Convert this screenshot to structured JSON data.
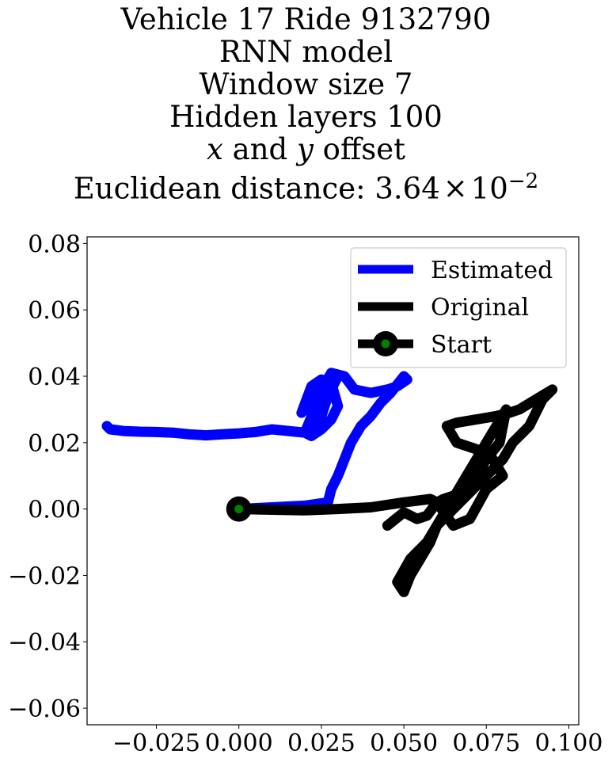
{
  "title_lines": [
    "Vehicle 17 Ride 9132790",
    "RNN model",
    "Window size 7",
    "Hidden layers 100"
  ],
  "title_offset": {
    "x": "x",
    "and": " and ",
    "y": "y",
    "rest": " offset"
  },
  "title_distance": {
    "prefix": "Euclidean distance: 3.64",
    "times": "×",
    "base": "10",
    "exp": "−2"
  },
  "chart_data": {
    "type": "line",
    "xlim": [
      -0.046,
      0.103
    ],
    "ylim": [
      -0.065,
      0.082
    ],
    "xticks": [
      -0.025,
      0.0,
      0.025,
      0.05,
      0.075,
      0.1
    ],
    "xtick_labels": [
      "−0.025",
      "0.000",
      "0.025",
      "0.050",
      "0.075",
      "0.100"
    ],
    "yticks": [
      -0.06,
      -0.04,
      -0.02,
      0.0,
      0.02,
      0.04,
      0.06,
      0.08
    ],
    "ytick_labels": [
      "−0.06",
      "−0.04",
      "−0.02",
      "0.00",
      "0.02",
      "0.04",
      "0.06",
      "0.08"
    ],
    "grid": false,
    "legend_position": "top-right",
    "series": [
      {
        "name": "Estimated",
        "color": "#0000ff",
        "x": [
          0.0,
          0.01,
          0.02,
          0.027,
          0.028,
          0.03,
          0.032,
          0.034,
          0.037,
          0.04,
          0.043,
          0.046,
          0.05,
          0.051,
          0.048,
          0.045,
          0.04,
          0.035,
          0.032,
          0.028,
          0.025,
          0.023,
          0.022,
          0.021,
          0.019,
          0.022,
          0.025,
          0.028,
          0.03,
          0.028,
          0.025,
          0.022,
          0.02,
          0.025,
          0.03,
          0.029,
          0.027,
          0.025,
          0.022,
          0.02,
          0.015,
          0.01,
          0.005,
          0.0,
          -0.005,
          -0.01,
          -0.015,
          -0.02,
          -0.025,
          -0.03,
          -0.035,
          -0.039,
          -0.04
        ],
        "y": [
          0.0,
          0.0005,
          0.001,
          0.002,
          0.006,
          0.01,
          0.015,
          0.02,
          0.025,
          0.028,
          0.032,
          0.035,
          0.04,
          0.039,
          0.037,
          0.036,
          0.035,
          0.036,
          0.04,
          0.041,
          0.036,
          0.034,
          0.033,
          0.031,
          0.029,
          0.037,
          0.039,
          0.038,
          0.031,
          0.027,
          0.024,
          0.022,
          0.023,
          0.035,
          0.04,
          0.038,
          0.034,
          0.028,
          0.024,
          0.023,
          0.0235,
          0.024,
          0.0232,
          0.0228,
          0.0225,
          0.0222,
          0.0225,
          0.023,
          0.0232,
          0.0233,
          0.0235,
          0.024,
          0.025
        ]
      },
      {
        "name": "Original",
        "color": "#000000",
        "x": [
          0.0,
          0.01,
          0.02,
          0.03,
          0.04,
          0.05,
          0.058,
          0.06,
          0.065,
          0.07,
          0.075,
          0.08,
          0.077,
          0.072,
          0.066,
          0.063,
          0.066,
          0.072,
          0.078,
          0.082,
          0.085,
          0.09,
          0.095,
          0.092,
          0.088,
          0.083,
          0.08,
          0.075,
          0.07,
          0.065,
          0.06,
          0.058,
          0.055,
          0.052,
          0.05,
          0.048,
          0.052,
          0.057,
          0.06,
          0.063,
          0.066,
          0.069,
          0.072,
          0.075,
          0.078,
          0.081,
          0.079,
          0.075,
          0.072,
          0.068,
          0.065,
          0.062,
          0.06,
          0.057,
          0.054,
          0.05,
          0.045
        ],
        "y": [
          0.0,
          -0.0002,
          -0.0004,
          0.0,
          0.0005,
          0.002,
          0.003,
          0.002,
          -0.005,
          -0.003,
          0.006,
          0.01,
          0.015,
          0.018,
          0.02,
          0.025,
          0.026,
          0.027,
          0.028,
          0.029,
          0.03,
          0.033,
          0.036,
          0.033,
          0.025,
          0.02,
          0.015,
          0.01,
          0.005,
          0.0,
          -0.005,
          -0.01,
          -0.015,
          -0.02,
          -0.025,
          -0.022,
          -0.015,
          -0.01,
          -0.005,
          0.0,
          0.005,
          0.01,
          0.015,
          0.02,
          0.025,
          0.03,
          0.02,
          0.015,
          0.01,
          0.005,
          0.004,
          0.003,
          0.002,
          -0.002,
          -0.003,
          -0.001,
          -0.005
        ]
      }
    ],
    "start_point": {
      "name": "Start",
      "x": 0.0,
      "y": 0.0,
      "color": "#000000",
      "inner_color": "#008000"
    }
  }
}
